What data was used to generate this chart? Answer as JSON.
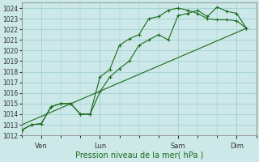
{
  "xlabel": "Pression niveau de la mer( hPa )",
  "ylim": [
    1012,
    1024.5
  ],
  "ytick_values": [
    1012,
    1013,
    1014,
    1015,
    1016,
    1017,
    1018,
    1019,
    1020,
    1021,
    1022,
    1023,
    1024
  ],
  "bg_color": "#cce8e8",
  "grid_color": "#99cccc",
  "line_color": "#1a6b1a",
  "xtick_labels": [
    "Ven",
    "Lun",
    "Sam",
    "Dim"
  ],
  "xtick_positions": [
    1,
    4,
    8,
    11
  ],
  "xlim": [
    0,
    12
  ],
  "line1_x": [
    0.0,
    0.5,
    1.0,
    1.5,
    2.0,
    2.5,
    3.0,
    3.5,
    4.0,
    4.5,
    5.0,
    5.5,
    6.0,
    6.5,
    7.0,
    7.5,
    8.0,
    8.5,
    9.0,
    9.5,
    10.0,
    10.5,
    11.0,
    11.5
  ],
  "line1_y": [
    1012.5,
    1013.0,
    1013.1,
    1014.7,
    1015.0,
    1015.0,
    1014.0,
    1014.0,
    1016.1,
    1017.5,
    1018.3,
    1019.0,
    1020.5,
    1021.0,
    1021.5,
    1021.0,
    1023.3,
    1023.5,
    1023.8,
    1023.2,
    1024.1,
    1023.7,
    1023.5,
    1022.1
  ],
  "line2_x": [
    0.0,
    0.5,
    1.0,
    1.5,
    2.0,
    2.5,
    3.0,
    3.5,
    4.0,
    4.5,
    5.0,
    5.5,
    6.0,
    6.5,
    7.0,
    7.5,
    8.0,
    8.5,
    9.0,
    9.5,
    10.0,
    10.5,
    11.0,
    11.5
  ],
  "line2_y": [
    1012.5,
    1013.0,
    1013.1,
    1014.7,
    1015.0,
    1015.0,
    1014.0,
    1014.0,
    1017.5,
    1018.2,
    1020.5,
    1021.1,
    1021.5,
    1023.0,
    1023.2,
    1023.8,
    1024.0,
    1023.8,
    1023.5,
    1023.0,
    1022.9,
    1022.9,
    1022.8,
    1022.1
  ],
  "line3_x": [
    0.0,
    11.5
  ],
  "line3_y": [
    1013.0,
    1022.1
  ],
  "ylabel_fontsize": 5.5,
  "xlabel_fontsize": 7,
  "tick_label_fontsize": 6
}
